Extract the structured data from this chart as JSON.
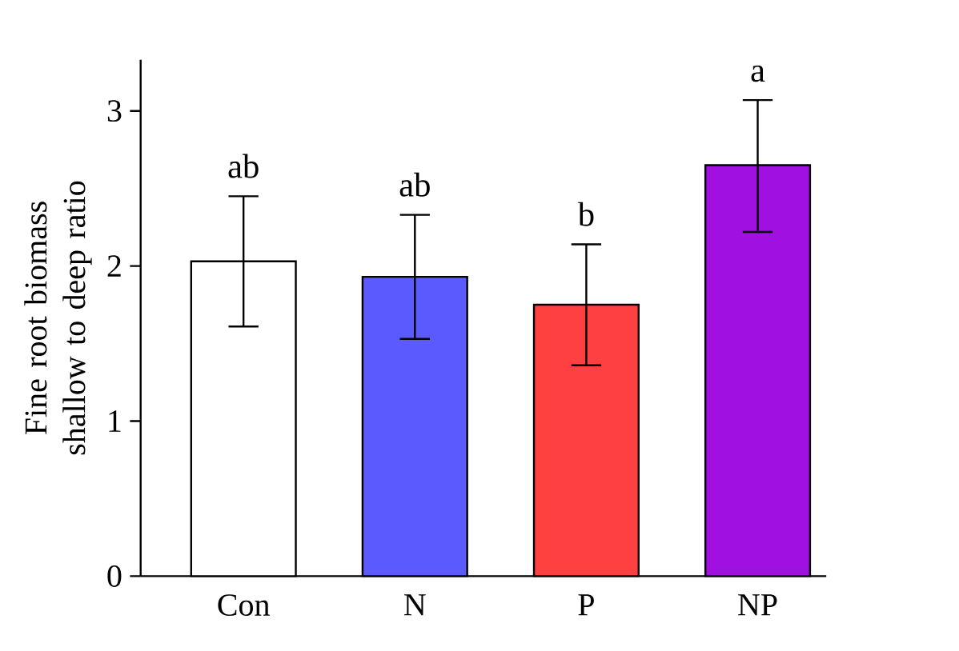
{
  "chart_data": {
    "type": "bar",
    "ylabel": "Fine root biomass shallow to deep ratio",
    "categories": [
      "Con",
      "N",
      "P",
      "NP"
    ],
    "values": [
      2.03,
      1.93,
      1.75,
      2.65
    ],
    "colors": [
      "#ffffff",
      "#5a5aff",
      "#ff4040",
      "#a010e0"
    ],
    "errors": [
      [
        1.61,
        2.45
      ],
      [
        1.53,
        2.33
      ],
      [
        1.36,
        2.14
      ],
      [
        2.22,
        3.07
      ]
    ],
    "ylim": [
      0,
      3.33
    ],
    "yticks": [
      0,
      1,
      2,
      3
    ],
    "annotations": [
      {
        "text": "ab",
        "x": "Con",
        "y": 2.45
      },
      {
        "text": "ab",
        "x": "N",
        "y": 2.33
      },
      {
        "text": "b",
        "x": "P",
        "y": 2.14
      },
      {
        "text": "a",
        "x": "NP",
        "y": 3.07
      }
    ]
  }
}
